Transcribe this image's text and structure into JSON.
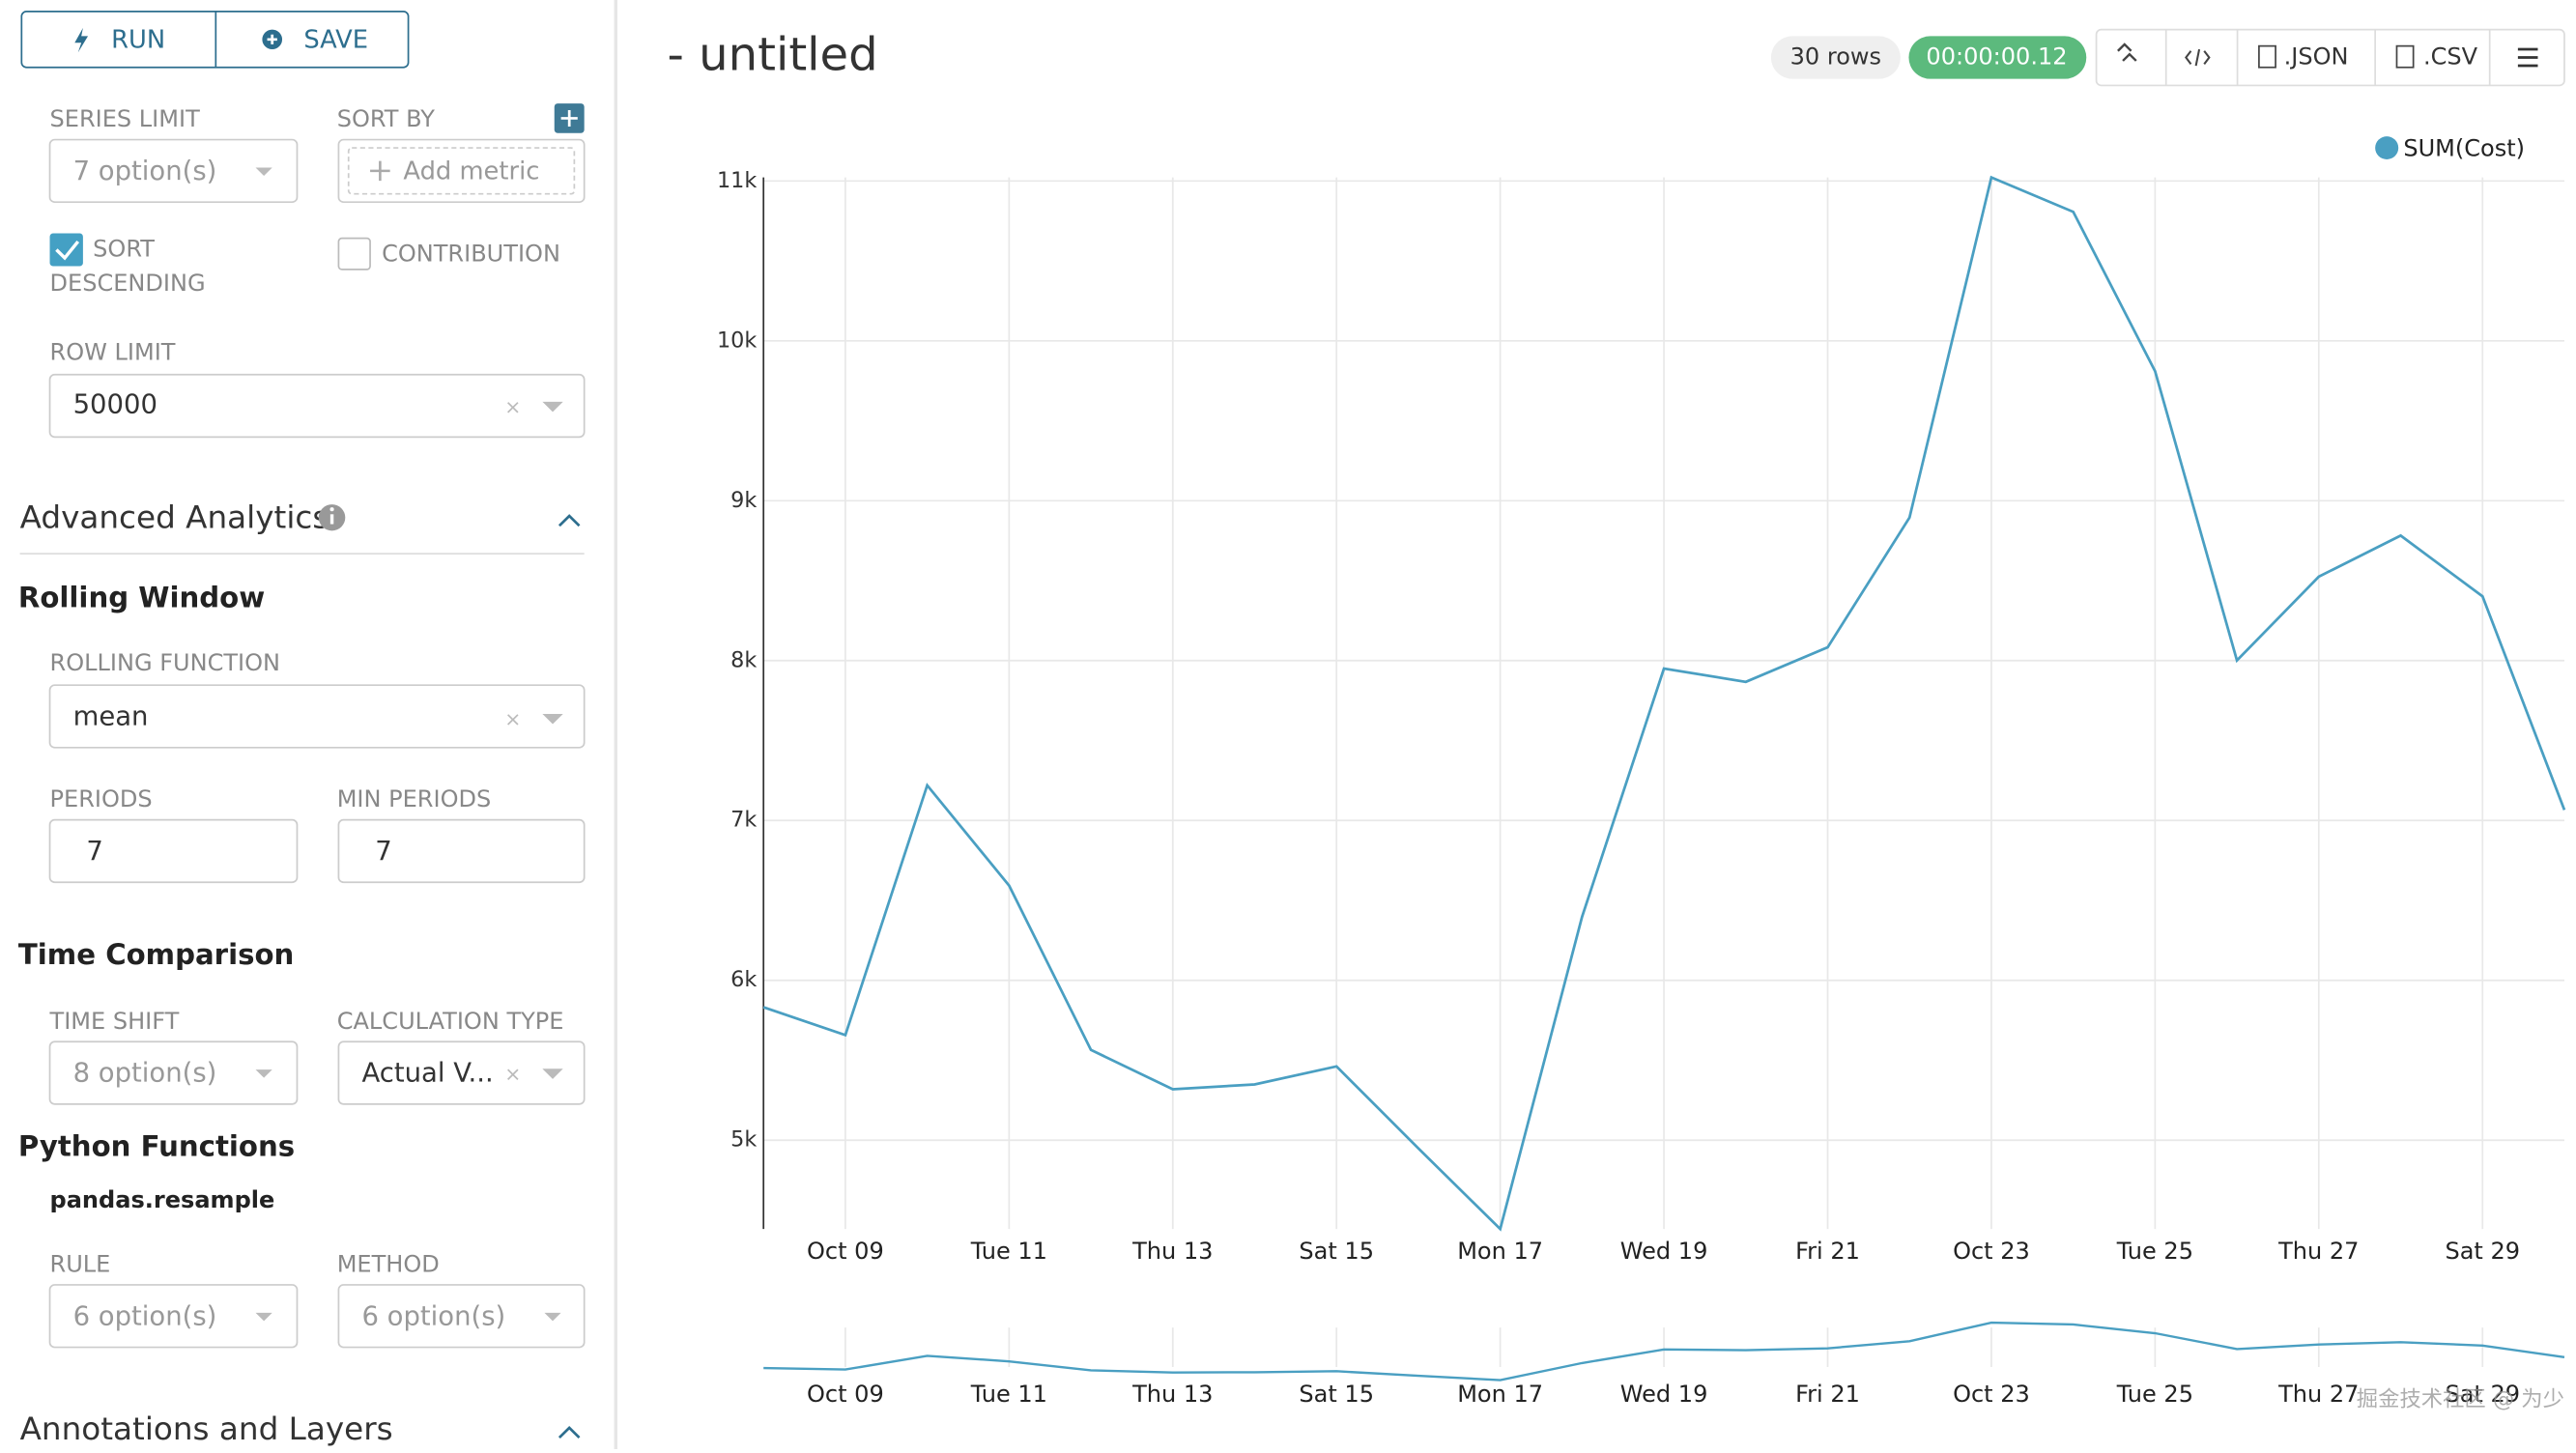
{
  "toolbar": {
    "run": "RUN",
    "save": "SAVE"
  },
  "controls": {
    "series_limit": {
      "label": "SERIES LIMIT",
      "value": "7 option(s)"
    },
    "sort_by": {
      "label": "SORT BY",
      "value": "Add metric"
    },
    "sort_descending": {
      "label_1": "SORT",
      "label_2": "DESCENDING"
    },
    "contribution": {
      "label": "CONTRIBUTION"
    },
    "row_limit": {
      "label": "ROW LIMIT",
      "value": "50000"
    },
    "advanced_analytics": "Advanced Analytics",
    "rolling_window": "Rolling Window",
    "rolling_function": {
      "label": "ROLLING FUNCTION",
      "value": "mean"
    },
    "periods": {
      "label": "PERIODS",
      "value": "7"
    },
    "min_periods": {
      "label": "MIN PERIODS",
      "value": "7"
    },
    "time_comparison": "Time Comparison",
    "time_shift": {
      "label": "TIME SHIFT",
      "value": "8 option(s)"
    },
    "calculation_type": {
      "label": "CALCULATION TYPE",
      "value": "Actual V..."
    },
    "python_functions": "Python Functions",
    "pandas_resample": "pandas.resample",
    "rule": {
      "label": "RULE",
      "value": "6 option(s)"
    },
    "method": {
      "label": "METHOD",
      "value": "6 option(s)"
    },
    "annotations": "Annotations and Layers"
  },
  "header": {
    "title": "- untitled",
    "rows": "30 rows",
    "time": "00:00:00.12",
    "json": ".JSON",
    "csv": ".CSV"
  },
  "watermark": "掘金技术社区 @ 为少",
  "chart_data": {
    "type": "line",
    "categories": [
      null,
      "Oct 09",
      null,
      "Tue 11",
      null,
      "Thu 13",
      null,
      "Sat 15",
      null,
      "Mon 17",
      null,
      "Wed 19",
      null,
      "Fri 21",
      null,
      "Oct 23",
      null,
      "Tue 25",
      null,
      "Thu 27",
      null,
      "Sat 29",
      null
    ],
    "series": [
      {
        "name": "SUM(Cost)",
        "color": "#4a9fc2",
        "values": [
          5832,
          5658,
          7220,
          6593,
          5565,
          5319,
          5349,
          5462,
          4949,
          4445,
          6398,
          7950,
          7867,
          8083,
          8895,
          11022,
          10807,
          9810,
          8001,
          8525,
          8782,
          8402,
          7066
        ]
      }
    ],
    "ylim": [
      4445,
      11022
    ],
    "yticks": [
      {
        "value": 5000,
        "label": "5k"
      },
      {
        "value": 6000,
        "label": "6k"
      },
      {
        "value": 7000,
        "label": "7k"
      },
      {
        "value": 8000,
        "label": "8k"
      },
      {
        "value": 9000,
        "label": "9k"
      },
      {
        "value": 10000,
        "label": "10k"
      },
      {
        "value": 11000,
        "label": "11k"
      }
    ],
    "grid": true
  }
}
